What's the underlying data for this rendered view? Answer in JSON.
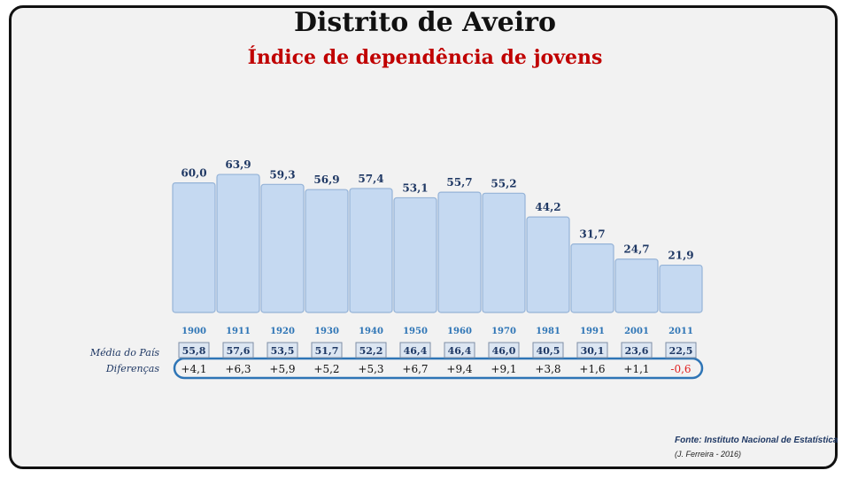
{
  "title": "Distrito de Aveiro",
  "subtitle": "Índice de dependência de jovens",
  "row_labels": {
    "national_average": "Média do País",
    "differences": "Diferenças"
  },
  "source": "Fonte: Instituto Nacional de Estatística",
  "credit": "(J. Ferreira - 2016)",
  "colors": {
    "bar_fill": "#c5d9f1",
    "bar_stroke": "#95b3d7",
    "value_text": "#1f3864",
    "year_text": "#2e75b6",
    "title": "#111111",
    "subtitle": "#c00000",
    "negative": "#e02020",
    "diff_box": "#2e75b6"
  },
  "chart_data": {
    "type": "bar",
    "title": "Distrito de Aveiro",
    "subtitle": "Índice de dependência de jovens",
    "categories": [
      "1900",
      "1911",
      "1920",
      "1930",
      "1940",
      "1950",
      "1960",
      "1970",
      "1981",
      "1991",
      "2001",
      "2011"
    ],
    "values": [
      60.0,
      63.9,
      59.3,
      56.9,
      57.4,
      53.1,
      55.7,
      55.2,
      44.2,
      31.7,
      24.7,
      21.9
    ],
    "value_labels": [
      "60,0",
      "63,9",
      "59,3",
      "56,9",
      "57,4",
      "53,1",
      "55,7",
      "55,2",
      "44,2",
      "31,7",
      "24,7",
      "21,9"
    ],
    "national_average": [
      "55,8",
      "57,6",
      "53,5",
      "51,7",
      "52,2",
      "46,4",
      "46,4",
      "46,0",
      "40,5",
      "30,1",
      "23,6",
      "22,5"
    ],
    "differences": [
      "+4,1",
      "+6,3",
      "+5,9",
      "+5,2",
      "+5,3",
      "+6,7",
      "+9,4",
      "+9,1",
      "+3,8",
      "+1,6",
      "+1,1",
      "-0,6"
    ],
    "xlabel": "",
    "ylabel": "",
    "grid": false,
    "legend": "none"
  }
}
